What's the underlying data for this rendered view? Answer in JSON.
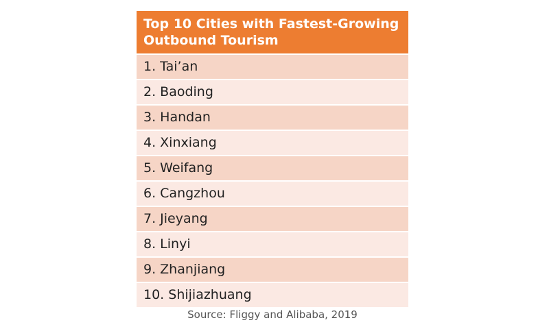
{
  "table": {
    "title": "Top 10 Cities with Fastest-Growing Outbound Tourism",
    "rows": [
      "1. Tai’an",
      "2. Baoding",
      "3. Handan",
      "4. Xinxiang",
      "5. Weifang",
      "6. Cangzhou",
      "7. Jieyang",
      "8. Linyi",
      "9. Zhanjiang",
      "10. Shijiazhuang"
    ]
  },
  "source": "Source: Fliggy and Alibaba, 2019"
}
